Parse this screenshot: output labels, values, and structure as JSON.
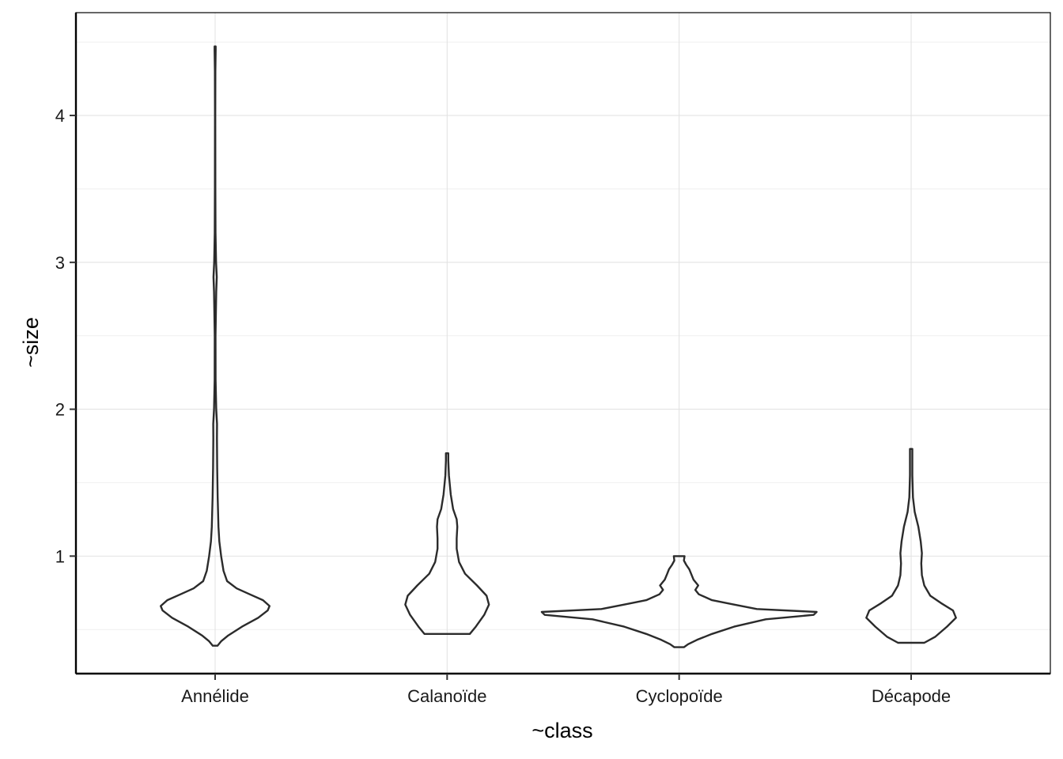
{
  "chart_data": {
    "type": "violin",
    "title": "",
    "xlabel": "~class",
    "ylabel": "~size",
    "categories": [
      "Annélide",
      "Calanoïde",
      "Cyclopoïde",
      "Décapode"
    ],
    "ylim": [
      0.2,
      4.7
    ],
    "y_ticks": [
      1,
      2,
      3,
      4
    ],
    "grid": true,
    "legend": "none",
    "colors": {
      "outline": "#2b2b2b",
      "grid_major": "#e3e3e3",
      "grid_minor": "#f1f1f1",
      "axis": "#000000"
    },
    "violins": [
      {
        "category": "Annélide",
        "min": 0.39,
        "max": 4.47,
        "profile": [
          [
            0.39,
            0.04
          ],
          [
            0.42,
            0.1
          ],
          [
            0.46,
            0.22
          ],
          [
            0.52,
            0.45
          ],
          [
            0.58,
            0.72
          ],
          [
            0.63,
            0.88
          ],
          [
            0.66,
            0.91
          ],
          [
            0.7,
            0.8
          ],
          [
            0.74,
            0.58
          ],
          [
            0.78,
            0.36
          ],
          [
            0.83,
            0.2
          ],
          [
            0.9,
            0.14
          ],
          [
            1.0,
            0.1
          ],
          [
            1.1,
            0.07
          ],
          [
            1.2,
            0.055
          ],
          [
            1.4,
            0.042
          ],
          [
            1.6,
            0.035
          ],
          [
            1.8,
            0.03
          ],
          [
            1.9,
            0.032
          ],
          [
            2.0,
            0.018
          ],
          [
            2.2,
            0.008
          ],
          [
            2.5,
            0.006
          ],
          [
            2.8,
            0.018
          ],
          [
            2.9,
            0.028
          ],
          [
            3.0,
            0.016
          ],
          [
            3.2,
            0.007
          ],
          [
            3.5,
            0.004
          ],
          [
            4.0,
            0.003
          ],
          [
            4.3,
            0.004
          ],
          [
            4.45,
            0.009
          ],
          [
            4.47,
            0.009
          ]
        ]
      },
      {
        "category": "Calanoïde",
        "min": 0.47,
        "max": 1.7,
        "profile": [
          [
            0.47,
            0.38
          ],
          [
            0.52,
            0.48
          ],
          [
            0.6,
            0.62
          ],
          [
            0.67,
            0.7
          ],
          [
            0.73,
            0.66
          ],
          [
            0.8,
            0.5
          ],
          [
            0.88,
            0.3
          ],
          [
            0.96,
            0.2
          ],
          [
            1.05,
            0.16
          ],
          [
            1.12,
            0.16
          ],
          [
            1.2,
            0.17
          ],
          [
            1.25,
            0.16
          ],
          [
            1.32,
            0.1
          ],
          [
            1.42,
            0.06
          ],
          [
            1.55,
            0.03
          ],
          [
            1.65,
            0.02
          ],
          [
            1.7,
            0.02
          ]
        ]
      },
      {
        "category": "Cyclopoïde",
        "min": 0.38,
        "max": 1.0,
        "profile": [
          [
            0.38,
            0.08
          ],
          [
            0.4,
            0.15
          ],
          [
            0.43,
            0.3
          ],
          [
            0.47,
            0.55
          ],
          [
            0.52,
            0.92
          ],
          [
            0.57,
            1.45
          ],
          [
            0.6,
            2.25
          ],
          [
            0.62,
            2.3
          ],
          [
            0.64,
            1.3
          ],
          [
            0.67,
            0.92
          ],
          [
            0.7,
            0.55
          ],
          [
            0.74,
            0.33
          ],
          [
            0.77,
            0.27
          ],
          [
            0.8,
            0.32
          ],
          [
            0.84,
            0.24
          ],
          [
            0.88,
            0.2
          ],
          [
            0.91,
            0.17
          ],
          [
            0.94,
            0.12
          ],
          [
            0.97,
            0.08
          ],
          [
            1.0,
            0.09
          ]
        ]
      },
      {
        "category": "Décapode",
        "min": 0.41,
        "max": 1.73,
        "profile": [
          [
            0.41,
            0.22
          ],
          [
            0.45,
            0.4
          ],
          [
            0.52,
            0.6
          ],
          [
            0.58,
            0.75
          ],
          [
            0.63,
            0.7
          ],
          [
            0.68,
            0.5
          ],
          [
            0.73,
            0.32
          ],
          [
            0.8,
            0.22
          ],
          [
            0.87,
            0.18
          ],
          [
            0.95,
            0.17
          ],
          [
            1.02,
            0.18
          ],
          [
            1.1,
            0.16
          ],
          [
            1.2,
            0.12
          ],
          [
            1.3,
            0.06
          ],
          [
            1.4,
            0.03
          ],
          [
            1.55,
            0.02
          ],
          [
            1.7,
            0.02
          ],
          [
            1.73,
            0.02
          ]
        ]
      }
    ]
  }
}
